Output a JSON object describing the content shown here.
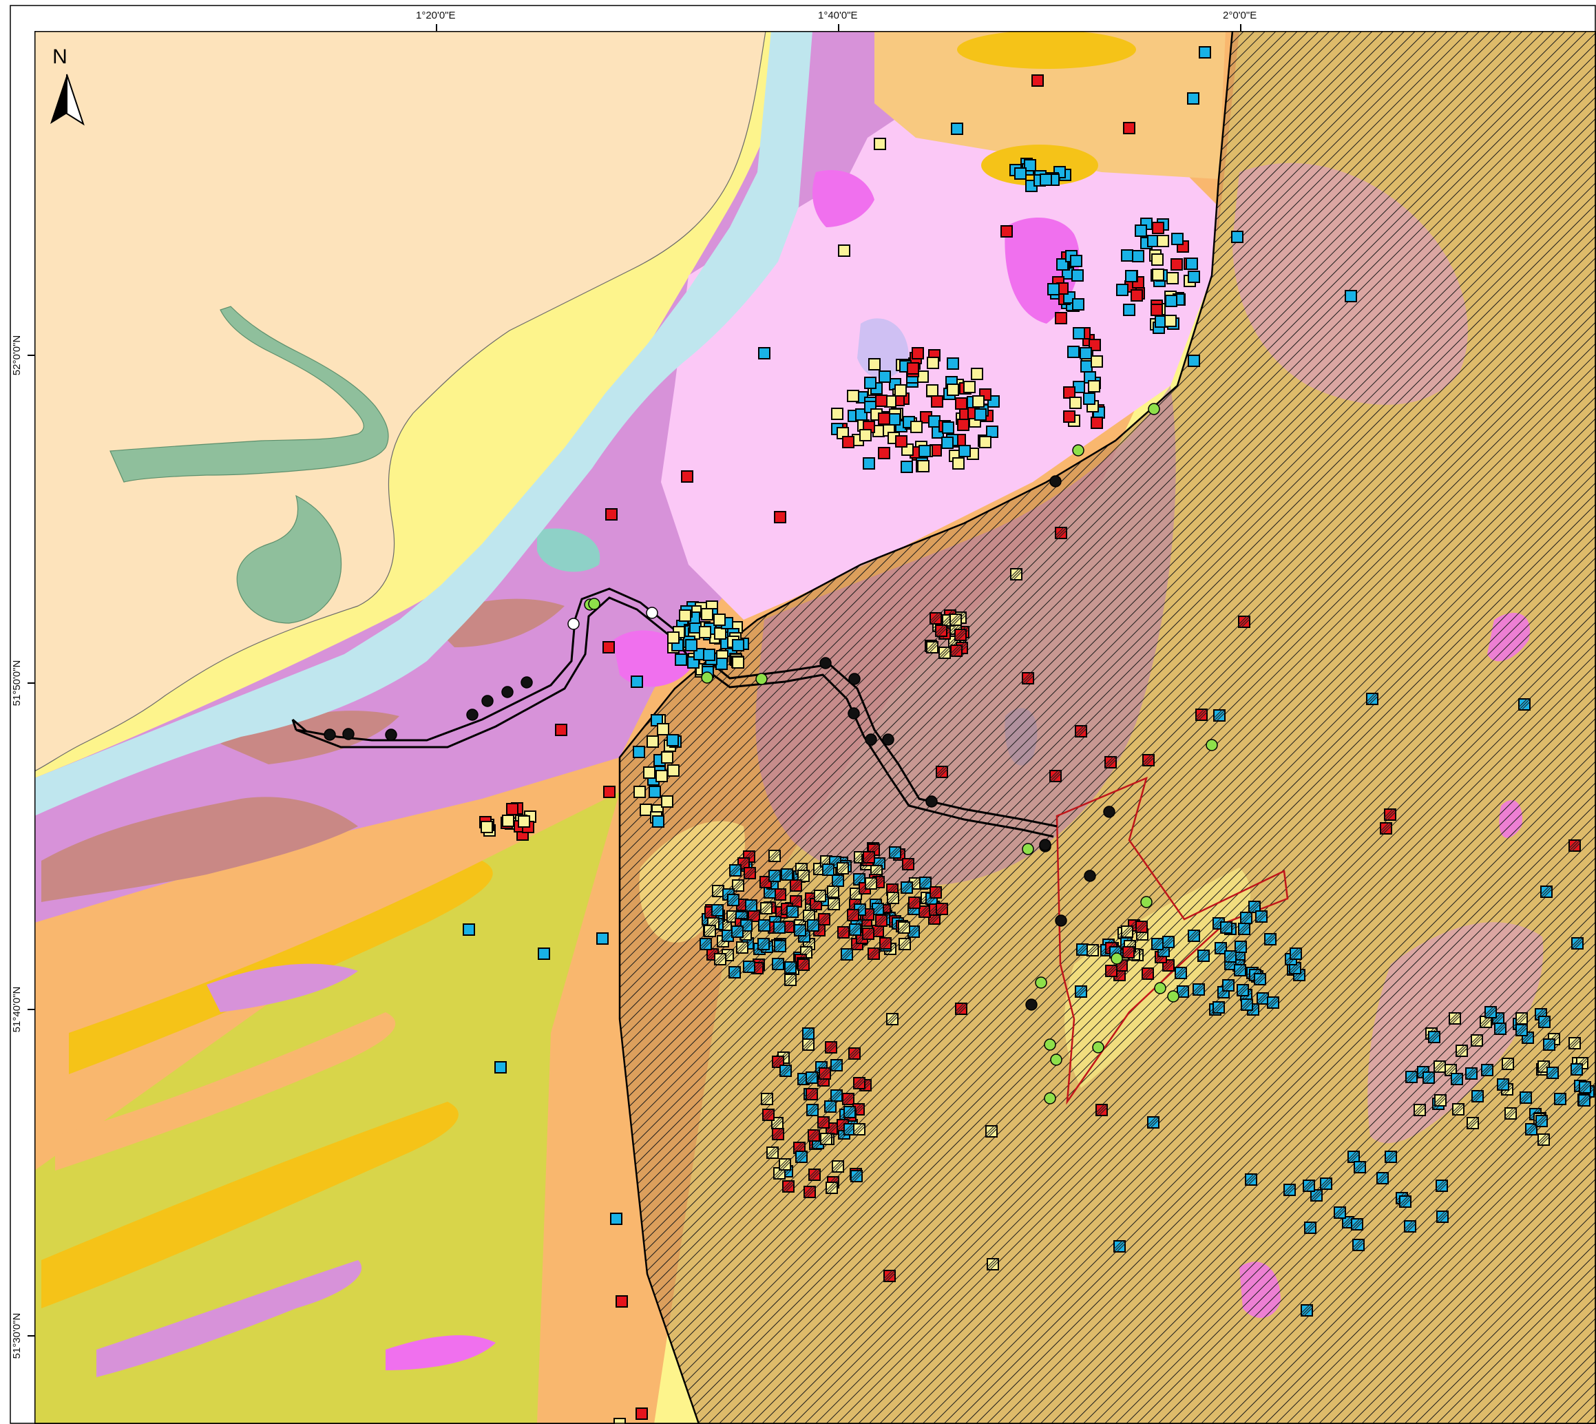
{
  "graticule": {
    "top_labels": [
      "1°20'0\"E",
      "1°40'0\"E",
      "2°0'0\"E"
    ],
    "left_labels": [
      "52°0'0\"N",
      "51°50'0\"N",
      "51°40'0\"N",
      "51°30'0\"N"
    ]
  },
  "north_arrow": {
    "letter": "N"
  },
  "colors": {
    "land": "#fde3bb",
    "shallow_water": "#bfe6ee",
    "estuary_green": "#8fbf9c",
    "pale_pink": "#fbc8f6",
    "mauve": "#d792d9",
    "magenta": "#f070ee",
    "orange": "#f9b76e",
    "light_orange": "#f8c980",
    "gold": "#f5c318",
    "pale_yellow": "#fdf48c",
    "olive": "#d8d54a",
    "rose_brown": "#c98885",
    "lilac": "#cfc0f3",
    "teal": "#8ed1c7",
    "hatch_brown": "#c58c4f",
    "hatch_line": "#1a1a1a",
    "cable_line": "#000000",
    "red_boundary": "#c0161a",
    "marker_red": "#e5141c",
    "marker_blue": "#19b2e6",
    "marker_yellow": "#fbf39a",
    "marker_green": "#8ee04a",
    "marker_black": "#111111",
    "marker_white": "#ffffff"
  }
}
